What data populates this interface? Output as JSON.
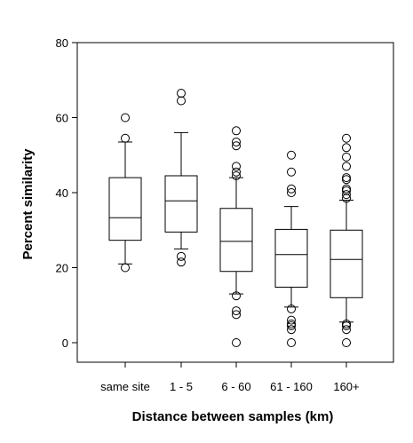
{
  "chart_data": {
    "type": "box",
    "title": "",
    "xlabel": "Distance between samples (km)",
    "ylabel": "Percent similarity",
    "ylim": [
      -5,
      80
    ],
    "yticks": [
      0,
      20,
      40,
      60,
      80
    ],
    "grid": false,
    "categories": [
      "same site",
      "1 - 5",
      "6 - 60",
      "61 - 160",
      "160+"
    ],
    "boxes": [
      {
        "category": "same site",
        "whisker_low": 21,
        "q1": 27.3,
        "median": 33.3,
        "q3": 44,
        "whisker_high": 53.5,
        "outliers": [
          20,
          54.5,
          60
        ]
      },
      {
        "category": "1 - 5",
        "whisker_low": 25,
        "q1": 29.5,
        "median": 37.8,
        "q3": 44.5,
        "whisker_high": 56,
        "outliers": [
          21.5,
          23,
          64.5,
          66.5
        ]
      },
      {
        "category": "6 - 60",
        "whisker_low": 13,
        "q1": 19,
        "median": 27,
        "q3": 35.8,
        "whisker_high": 44,
        "outliers": [
          0,
          7.5,
          8.5,
          12.5,
          44.5,
          45.5,
          47,
          52.5,
          53.5,
          56.5
        ]
      },
      {
        "category": "61 - 160",
        "whisker_low": 9.5,
        "q1": 14.8,
        "median": 23.5,
        "q3": 30.2,
        "whisker_high": 36.3,
        "outliers": [
          0,
          3.5,
          4.5,
          5,
          6,
          9,
          40,
          41,
          45.5,
          50
        ]
      },
      {
        "category": "160+",
        "whisker_low": 5.5,
        "q1": 12,
        "median": 22.2,
        "q3": 30,
        "whisker_high": 38,
        "outliers": [
          0,
          3.5,
          4.5,
          5,
          38.5,
          39.5,
          40.5,
          41,
          43.5,
          44,
          47,
          49.5,
          52,
          54.5
        ]
      }
    ]
  }
}
